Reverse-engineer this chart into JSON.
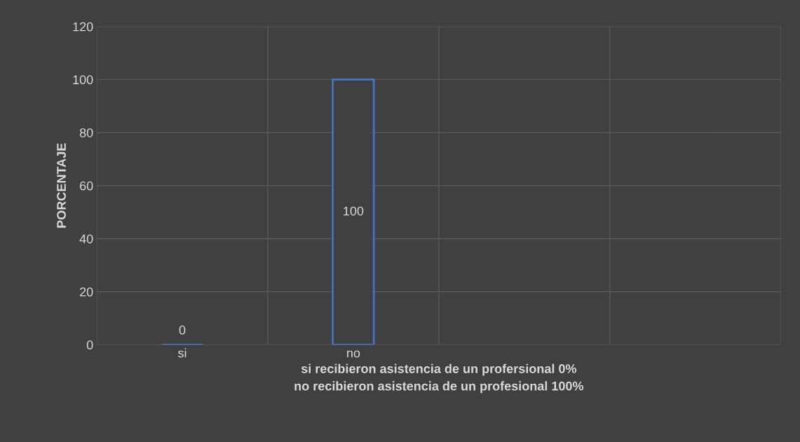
{
  "chart_data": {
    "type": "bar",
    "ylabel": "PORCENTAJE",
    "xlabel": "si recibieron asistencia de un profersional 0%\nno recibieron asistencia de un profesional 100%",
    "categories": [
      "si",
      "no",
      null,
      null
    ],
    "values": [
      0,
      100,
      null,
      null
    ],
    "color": "#4472c4",
    "ylim": [
      0,
      120
    ],
    "yticks": [
      0,
      20,
      40,
      60,
      80,
      100,
      120
    ],
    "grid": true,
    "data_labels": true
  }
}
